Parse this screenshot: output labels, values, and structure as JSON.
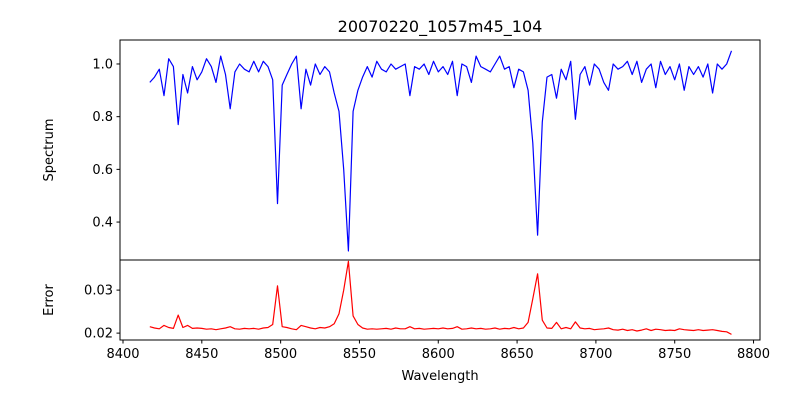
{
  "chart_data": [
    {
      "type": "line",
      "title": "20070220_1057m45_104",
      "xlabel": "",
      "ylabel": "Spectrum",
      "xlim": [
        8398.1,
        8804.1
      ],
      "ylim": [
        0.256,
        1.091
      ],
      "xticks": [],
      "yticks": [
        0.4,
        0.6,
        0.8,
        1.0
      ],
      "ytick_labels": [
        "0.4",
        "0.6",
        "0.8",
        "1.0"
      ],
      "grid": false,
      "color": "#0000ff",
      "x_start": 8417,
      "x_step": 3,
      "values": [
        0.93,
        0.95,
        0.98,
        0.88,
        1.02,
        0.99,
        0.77,
        0.96,
        0.89,
        0.99,
        0.94,
        0.97,
        1.02,
        0.99,
        0.93,
        1.03,
        0.96,
        0.83,
        0.97,
        1.0,
        0.98,
        0.97,
        1.01,
        0.97,
        1.01,
        0.99,
        0.94,
        0.47,
        0.92,
        0.96,
        1.0,
        1.03,
        0.83,
        0.98,
        0.92,
        1.0,
        0.96,
        0.99,
        0.97,
        0.89,
        0.82,
        0.6,
        0.29,
        0.82,
        0.9,
        0.95,
        0.99,
        0.95,
        1.01,
        0.98,
        0.97,
        1.0,
        0.98,
        0.99,
        1.0,
        0.88,
        0.99,
        0.98,
        1.0,
        0.96,
        1.01,
        0.97,
        0.99,
        0.96,
        1.01,
        0.88,
        1.0,
        0.99,
        0.93,
        1.03,
        0.99,
        0.98,
        0.97,
        1.0,
        1.03,
        0.98,
        0.99,
        0.91,
        0.98,
        0.97,
        0.9,
        0.7,
        0.35,
        0.78,
        0.95,
        0.96,
        0.87,
        0.98,
        0.94,
        1.01,
        0.79,
        0.96,
        0.99,
        0.92,
        1.0,
        0.98,
        0.93,
        0.9,
        1.0,
        0.98,
        0.99,
        1.01,
        0.96,
        1.01,
        0.93,
        0.98,
        1.0,
        0.91,
        1.01,
        0.96,
        0.99,
        0.94,
        1.0,
        0.9,
        0.99,
        0.96,
        0.99,
        0.95,
        1.0,
        0.89,
        1.0,
        0.98,
        1.0,
        1.05
      ]
    },
    {
      "type": "line",
      "title": "",
      "xlabel": "Wavelength",
      "ylabel": "Error",
      "xlim": [
        8398.1,
        8804.1
      ],
      "ylim": [
        0.0184,
        0.037
      ],
      "xticks": [
        8400,
        8450,
        8500,
        8550,
        8600,
        8650,
        8700,
        8750,
        8800
      ],
      "xtick_labels": [
        "8400",
        "8450",
        "8500",
        "8550",
        "8600",
        "8650",
        "8700",
        "8750",
        "8800"
      ],
      "yticks": [
        0.02,
        0.03
      ],
      "ytick_labels": [
        "0.02",
        "0.03"
      ],
      "grid": false,
      "color": "#ff0000",
      "x_start": 8417,
      "x_step": 3,
      "values": [
        0.0215,
        0.0212,
        0.021,
        0.0218,
        0.0213,
        0.0211,
        0.0242,
        0.0213,
        0.0218,
        0.0211,
        0.0212,
        0.0211,
        0.0209,
        0.021,
        0.0208,
        0.021,
        0.0212,
        0.0215,
        0.021,
        0.0209,
        0.0211,
        0.021,
        0.0211,
        0.0209,
        0.0212,
        0.0213,
        0.022,
        0.031,
        0.0215,
        0.0213,
        0.021,
        0.0208,
        0.0218,
        0.0215,
        0.0212,
        0.021,
        0.0213,
        0.0212,
        0.0215,
        0.0222,
        0.0245,
        0.03,
        0.0367,
        0.024,
        0.022,
        0.0212,
        0.0209,
        0.021,
        0.0209,
        0.021,
        0.0211,
        0.0209,
        0.0212,
        0.021,
        0.021,
        0.0215,
        0.021,
        0.0211,
        0.0209,
        0.021,
        0.0211,
        0.021,
        0.0212,
        0.021,
        0.0211,
        0.0215,
        0.0209,
        0.021,
        0.0212,
        0.021,
        0.0211,
        0.0209,
        0.021,
        0.0212,
        0.0209,
        0.0211,
        0.021,
        0.0213,
        0.021,
        0.0212,
        0.0225,
        0.028,
        0.0338,
        0.023,
        0.0212,
        0.0211,
        0.0225,
        0.021,
        0.0213,
        0.021,
        0.0226,
        0.0212,
        0.021,
        0.0211,
        0.0208,
        0.0209,
        0.021,
        0.0212,
        0.0208,
        0.0207,
        0.0209,
        0.0206,
        0.0208,
        0.0205,
        0.0207,
        0.021,
        0.0206,
        0.0209,
        0.0208,
        0.0206,
        0.0207,
        0.0206,
        0.021,
        0.0208,
        0.0207,
        0.0206,
        0.0208,
        0.0206,
        0.0207,
        0.0208,
        0.0206,
        0.0204,
        0.0203,
        0.0197
      ]
    }
  ]
}
